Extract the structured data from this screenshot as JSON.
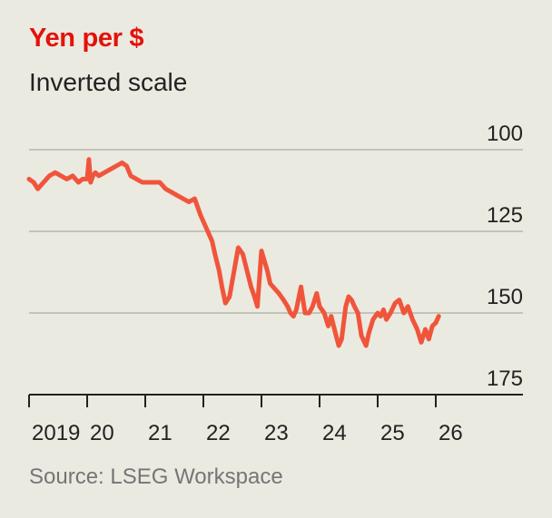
{
  "title": "Yen per $",
  "subtitle": "Inverted scale",
  "source": "Source: LSEG Workspace",
  "colors": {
    "line": "#f0553c",
    "title": "#e3120b",
    "grid": "#b7b6ae",
    "axis": "#222222"
  },
  "chart_data": {
    "type": "line",
    "title": "Yen per $",
    "subtitle": "Inverted scale",
    "xlabel": "",
    "ylabel": "",
    "y_inverted": true,
    "ylim": [
      100,
      175
    ],
    "yticks": [
      100,
      125,
      150,
      175
    ],
    "xlim": [
      2019.0,
      2026.6
    ],
    "xticks": [
      {
        "value": 2019,
        "label": "2019"
      },
      {
        "value": 2020,
        "label": "20"
      },
      {
        "value": 2021,
        "label": "21"
      },
      {
        "value": 2022,
        "label": "22"
      },
      {
        "value": 2023,
        "label": "23"
      },
      {
        "value": 2024,
        "label": "24"
      },
      {
        "value": 2025,
        "label": "25"
      },
      {
        "value": 2026,
        "label": "26"
      }
    ],
    "grid": true,
    "series": [
      {
        "x": [
          2019.0,
          2019.08,
          2019.15,
          2019.25,
          2019.35,
          2019.45,
          2019.55,
          2019.65,
          2019.75,
          2019.85,
          2019.92,
          2020.0,
          2020.03,
          2020.06,
          2020.1,
          2020.14,
          2020.2,
          2020.3,
          2020.4,
          2020.5,
          2020.6,
          2020.68,
          2020.75,
          2020.85,
          2020.95,
          2021.05,
          2021.15,
          2021.25,
          2021.35,
          2021.45,
          2021.55,
          2021.65,
          2021.75,
          2021.85,
          2021.95,
          2022.05,
          2022.15,
          2022.2,
          2022.27,
          2022.32,
          2022.38,
          2022.45,
          2022.5,
          2022.55,
          2022.6,
          2022.68,
          2022.75,
          2022.82,
          2022.88,
          2022.93,
          2023.0,
          2023.05,
          2023.1,
          2023.15,
          2023.2,
          2023.25,
          2023.3,
          2023.38,
          2023.45,
          2023.5,
          2023.55,
          2023.6,
          2023.68,
          2023.75,
          2023.82,
          2023.88,
          2023.95,
          2024.0,
          2024.08,
          2024.15,
          2024.2,
          2024.27,
          2024.33,
          2024.38,
          2024.45,
          2024.5,
          2024.55,
          2024.6,
          2024.66,
          2024.72,
          2024.8,
          2024.85,
          2024.92,
          2025.0,
          2025.05,
          2025.1,
          2025.15,
          2025.22,
          2025.3,
          2025.37,
          2025.45,
          2025.52,
          2025.6,
          2025.68,
          2025.75,
          2025.82,
          2025.88,
          2025.94,
          2026.0,
          2026.05
        ],
        "values": [
          109,
          110,
          112,
          110,
          108,
          107,
          108,
          109,
          108,
          110,
          109,
          109,
          103,
          110,
          108,
          107,
          108,
          107,
          106,
          105,
          104,
          105,
          108,
          109,
          110,
          110,
          110,
          110,
          112,
          113,
          114,
          115,
          116,
          115,
          120,
          124,
          128,
          132,
          137,
          142,
          147,
          145,
          140,
          135,
          130,
          132,
          137,
          142,
          145,
          148,
          131,
          134,
          137,
          141,
          142,
          143,
          144,
          146,
          148,
          150,
          151,
          149,
          142,
          150,
          150,
          148,
          144,
          148,
          150,
          154,
          151,
          156,
          160,
          158,
          148,
          145,
          146,
          148,
          150,
          157,
          160,
          156,
          152,
          150,
          151,
          149,
          152,
          150,
          147,
          146,
          150,
          148,
          152,
          155,
          159,
          155,
          158,
          154,
          153,
          151
        ]
      }
    ]
  }
}
